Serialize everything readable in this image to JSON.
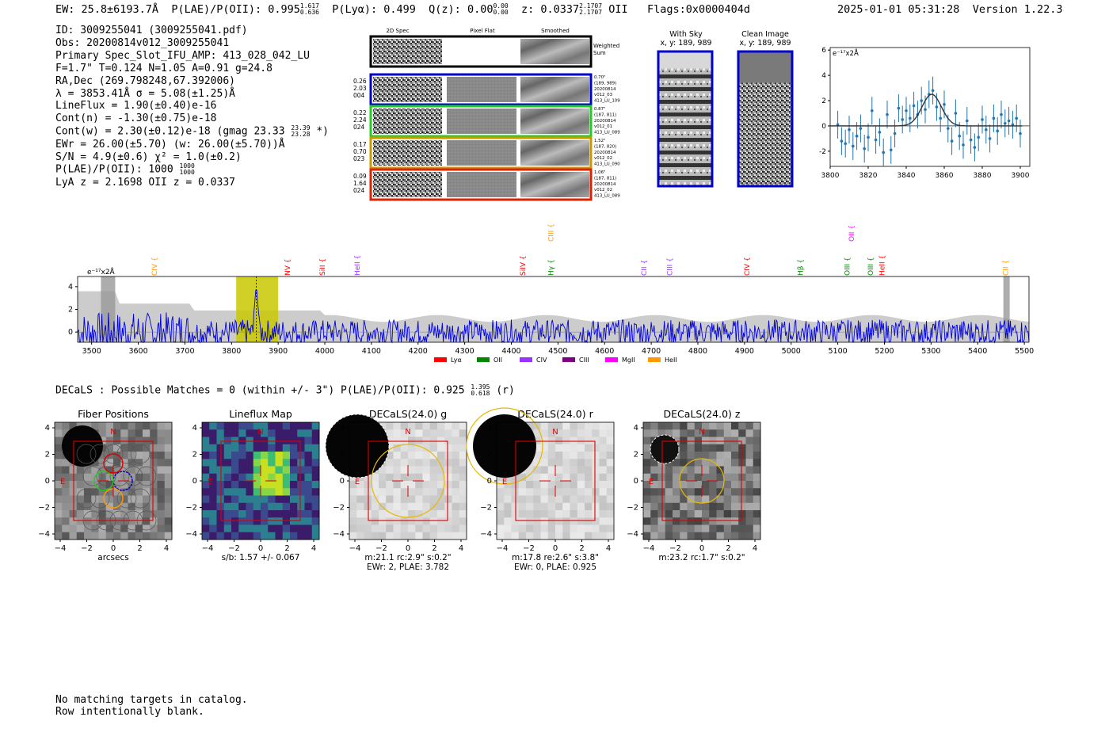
{
  "header": {
    "ew": "EW: 25.8±6193.7Å",
    "plae_label": "P(LAE)/P(OII): 0.995",
    "plae_hi": "1.617",
    "plae_lo": "0.636",
    "plya": "P(Lyα): 0.499",
    "qz_label": "Q(z): 0.00",
    "qz_hi": "0.00",
    "qz_lo": "0.00",
    "z_label": "z: 0.0337",
    "z_hi": "2.1707",
    "z_lo": "2.1707",
    "z_line": "OII",
    "flags": "Flags:0x0000404d",
    "datetime": "2025-01-01 05:31:28",
    "version": "Version 1.22.3"
  },
  "info": {
    "lines": [
      "ID: 3009255041 (3009255041.pdf)",
      "Obs: 20200814v012_3009255041",
      "Primary Spec_Slot_IFU_AMP: 413_028_042_LU",
      "F=1.7\"  T=0.124  N=1.05  A=0.91  g=24.8",
      "RA,Dec (269.798248,67.392006)",
      "λ = 3853.41Å   σ = 5.08(±1.25)Å",
      "LineFlux = 1.90(±0.40)e-16",
      "Cont(n) = -1.30(±0.75)e-18"
    ],
    "contw": "Cont(w) = 2.30(±0.12)e-18 (gmag 23.33",
    "contw_hi": "23.39",
    "contw_lo": "23.28",
    "contw_end": "*)",
    "ewr": "EWr = 26.00(±5.70) (w: 26.00(±5.70))Å",
    "sn": "S/N = 4.9(±0.6)  χ² = 1.0(±0.2)",
    "plae2": "P(LAE)/P(OII): 1000",
    "plae2_hi": "1000",
    "plae2_lo": "1000",
    "lya_z": "LyA z = 2.1698   OII z = 0.0337"
  },
  "cutouts": {
    "col_titles": [
      "2D Spec",
      "Pixel Flat",
      "Smoothed"
    ],
    "weighted_sum": [
      "Weighted",
      "Sum"
    ],
    "rows": [
      {
        "left": [
          "0.26",
          "2.03",
          "004"
        ],
        "right": [
          "0.70\"",
          "(189, 989)",
          "20200814",
          "v012_03",
          "413_LU_109"
        ],
        "color": "#0000cc"
      },
      {
        "left": [
          "0.22",
          "2.24",
          "024"
        ],
        "right": [
          "0.87\"",
          "(187, 811)",
          "20200814",
          "v012_01",
          "413_LU_089"
        ],
        "color": "#22cc22"
      },
      {
        "left": [
          "0.17",
          "0.70",
          "023"
        ],
        "right": [
          "1.52\"",
          "(187, 820)",
          "20200814",
          "v012_02",
          "413_LU_090"
        ],
        "color": "#cc9900"
      },
      {
        "left": [
          "0.09",
          "1.64",
          "024"
        ],
        "right": [
          "1.06\"",
          "(187, 811)",
          "20200814",
          "v012_02",
          "413_LU_089"
        ],
        "color": "#dd2200"
      }
    ]
  },
  "sky": {
    "with_sky": [
      "With Sky",
      "x, y: 189, 989"
    ],
    "clean": [
      "Clean Image",
      "x, y: 189, 989"
    ]
  },
  "chart_data": [
    {
      "type": "scatter",
      "title": "",
      "unit_label": "e⁻¹⁷x2Å",
      "xlim": [
        3800,
        3905
      ],
      "ylim": [
        -3.2,
        6.2
      ],
      "xticks": [
        3800,
        3820,
        3840,
        3860,
        3880,
        3900
      ],
      "yticks": [
        -2,
        0,
        2,
        4,
        6
      ],
      "points": [
        [
          3804,
          0.1
        ],
        [
          3806,
          -1.2
        ],
        [
          3808,
          -1.4
        ],
        [
          3810,
          -0.3
        ],
        [
          3812,
          -1.6
        ],
        [
          3814,
          -0.8
        ],
        [
          3816,
          -0.2
        ],
        [
          3818,
          -1.8
        ],
        [
          3820,
          -0.9
        ],
        [
          3822,
          1.2
        ],
        [
          3824,
          -1.1
        ],
        [
          3826,
          -0.5
        ],
        [
          3828,
          -2.1
        ],
        [
          3830,
          0.9
        ],
        [
          3832,
          -1.9
        ],
        [
          3834,
          -0.6
        ],
        [
          3836,
          1.4
        ],
        [
          3838,
          0.5
        ],
        [
          3840,
          1.2
        ],
        [
          3842,
          0.6
        ],
        [
          3844,
          1.6
        ],
        [
          3846,
          0.9
        ],
        [
          3848,
          2.0
        ],
        [
          3850,
          1.3
        ],
        [
          3852,
          2.5
        ],
        [
          3854,
          2.8
        ],
        [
          3856,
          1.5
        ],
        [
          3858,
          0.6
        ],
        [
          3860,
          1.7
        ],
        [
          3862,
          -0.2
        ],
        [
          3864,
          -1.2
        ],
        [
          3866,
          1.0
        ],
        [
          3868,
          -0.8
        ],
        [
          3870,
          -1.5
        ],
        [
          3872,
          0.4
        ],
        [
          3874,
          -1.1
        ],
        [
          3876,
          -1.7
        ],
        [
          3878,
          -0.9
        ],
        [
          3880,
          0.5
        ],
        [
          3882,
          -0.3
        ],
        [
          3884,
          -1.0
        ],
        [
          3886,
          0.6
        ],
        [
          3888,
          -0.4
        ],
        [
          3890,
          0.9
        ],
        [
          3892,
          0.2
        ],
        [
          3894,
          0.4
        ],
        [
          3896,
          0.1
        ],
        [
          3898,
          0.6
        ],
        [
          3900,
          -0.6
        ]
      ],
      "errors": 1.1,
      "fit": {
        "center": 3853.41,
        "sigma": 5.08,
        "amp": 2.5,
        "baseline": 0
      }
    },
    {
      "type": "line",
      "unit_label": "e⁻¹⁷x2Å",
      "xlim": [
        3470,
        5510
      ],
      "ylim": [
        -0.9,
        4.9
      ],
      "xticks": [
        3500,
        3600,
        3700,
        3800,
        3900,
        4000,
        4100,
        4200,
        4300,
        4400,
        4500,
        4600,
        4700,
        4800,
        4900,
        5000,
        5100,
        5200,
        5300,
        5400,
        5500
      ],
      "yticks": [
        0,
        2,
        4
      ],
      "highlight": [
        3810,
        3900
      ],
      "marker": 3853,
      "lines": [
        {
          "label": "CIV",
          "x": 3640,
          "color": "#ff9900",
          "tier": 1
        },
        {
          "label": "NV",
          "x": 3925,
          "color": "#ff0000",
          "tier": 1
        },
        {
          "label": "SiII",
          "x": 4000,
          "color": "#ff0000",
          "tier": 1
        },
        {
          "label": "HeII",
          "x": 4075,
          "color": "#9933ff",
          "tier": 1
        },
        {
          "label": "SiIV",
          "x": 4430,
          "color": "#ff0000",
          "tier": 1
        },
        {
          "label": "CIII",
          "x": 4490,
          "color": "#ff9900",
          "tier": 2
        },
        {
          "label": "Hγ",
          "x": 4490,
          "color": "#008800",
          "tier": 1
        },
        {
          "label": "CII",
          "x": 4690,
          "color": "#9933ff",
          "tier": 1
        },
        {
          "label": "CIII",
          "x": 4745,
          "color": "#9933ff",
          "tier": 1
        },
        {
          "label": "CIV",
          "x": 4910,
          "color": "#ff0000",
          "tier": 1
        },
        {
          "label": "Hβ",
          "x": 5025,
          "color": "#008800",
          "tier": 1
        },
        {
          "label": "OII",
          "x": 5135,
          "color": "#ff00ff",
          "tier": 2
        },
        {
          "label": "OIII",
          "x": 5125,
          "color": "#008800",
          "tier": 1
        },
        {
          "label": "OIII",
          "x": 5175,
          "color": "#008800",
          "tier": 1
        },
        {
          "label": "HeII",
          "x": 5200,
          "color": "#ff0000",
          "tier": 1
        },
        {
          "label": "CII",
          "x": 5465,
          "color": "#ff9900",
          "tier": 1
        }
      ],
      "legend": [
        {
          "label": "Lyα",
          "color": "#ff0000"
        },
        {
          "label": "OII",
          "color": "#008800"
        },
        {
          "label": "CIV",
          "color": "#9933ff"
        },
        {
          "label": "CIII",
          "color": "#800080"
        },
        {
          "label": "MgII",
          "color": "#ff00ff"
        },
        {
          "label": "HeII",
          "color": "#ff9900"
        }
      ]
    }
  ],
  "decals": {
    "heading": "DECaLS : Possible Matches = 0 (within +/- 3\")  P(LAE)/P(OII): 0.925",
    "hi": "1.395",
    "lo": "0.618",
    "band": "(r)",
    "panels": [
      {
        "title": "Fiber Positions",
        "under": [
          "arcsecs"
        ]
      },
      {
        "title": "Lineflux Map",
        "under": [
          "s/b: 1.57 +/- 0.067"
        ]
      },
      {
        "title": "DECaLS(24.0) g",
        "under": [
          "m:21.1 rc:2.9\"  s:0.2\"",
          "EWr: 2, PLAE: 3.782"
        ]
      },
      {
        "title": "DECaLS(24.0) r",
        "under": [
          "m:17.8  re:2.6\"  s:3.8\"",
          "EWr: 0, PLAE: 0.925"
        ]
      },
      {
        "title": "DECaLS(24.0) z",
        "under": [
          "m:23.2 rc:1.7\"  s:0.2\""
        ]
      }
    ],
    "ticks": [
      "−4",
      "−2",
      "0",
      "2",
      "4"
    ],
    "n_label": "N",
    "e_label": "E"
  },
  "footer": [
    "No matching targets in catalog.",
    "Row intentionally blank."
  ]
}
